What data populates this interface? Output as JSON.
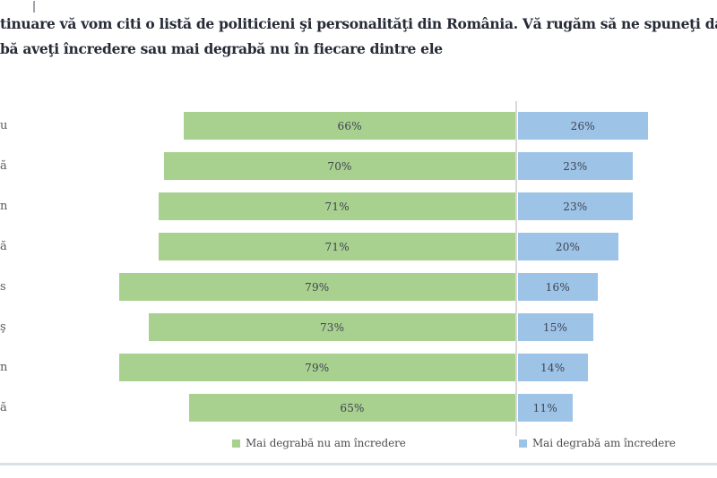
{
  "title": {
    "line1": "tinuare vă vom citi o listă de politicieni şi personalităţi din România. Vă rugăm să ne spuneţi dacă mai",
    "line2": "bă aveţi încredere sau mai degrabă nu în fiecare dintre ele"
  },
  "chart_data": {
    "type": "bar",
    "orientation": "horizontal-diverging",
    "categories": [
      "u",
      "ă",
      "n",
      "ă",
      "s",
      "ş",
      "n",
      "ă"
    ],
    "series": [
      {
        "name": "Mai degrabă nu am încredere",
        "color": "#a8d08e",
        "values": [
          66,
          70,
          71,
          71,
          79,
          73,
          79,
          65
        ]
      },
      {
        "name": "Mai degrabă am încredere",
        "color": "#9dc3e6",
        "values": [
          26,
          23,
          23,
          20,
          16,
          15,
          14,
          11
        ]
      }
    ],
    "value_suffix": "%",
    "legend_position": "bottom",
    "grid": "single-center-divider"
  },
  "legend": {
    "items": [
      {
        "label": "Mai degrabă nu am încredere",
        "color": "#a8d08e"
      },
      {
        "label": "Mai degrabă am încredere",
        "color": "#9dc3e6"
      }
    ]
  },
  "colors": {
    "green": "#a8d08e",
    "blue": "#9dc3e6",
    "divider": "#d9d9d9",
    "bottom_rule": "#d9e0ea",
    "title_text": "#262b36",
    "category_text": "#5a5a5a",
    "value_text": "#3f4455"
  }
}
